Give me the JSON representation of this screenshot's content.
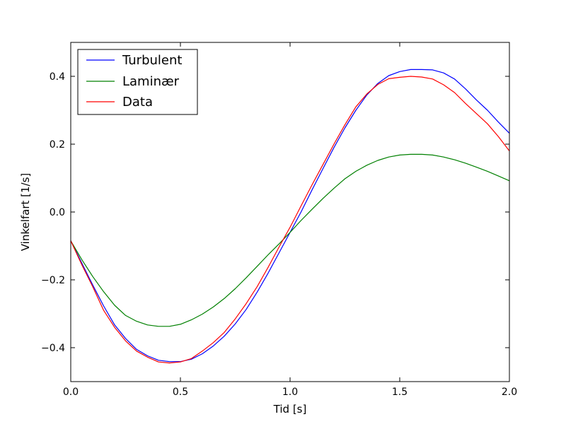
{
  "chart_data": {
    "type": "line",
    "title": "",
    "xlabel": "Tid [s]",
    "ylabel": "Vinkelfart [1/s]",
    "xlim": [
      0.0,
      2.0
    ],
    "ylim": [
      -0.5,
      0.5
    ],
    "x_ticks": [
      0.0,
      0.5,
      1.0,
      1.5,
      2.0
    ],
    "x_tick_labels": [
      "0.0",
      "0.5",
      "1.0",
      "1.5",
      "2.0"
    ],
    "y_ticks": [
      -0.4,
      -0.2,
      0.0,
      0.2,
      0.4
    ],
    "y_tick_labels": [
      "−0.4",
      "−0.2",
      "0.0",
      "0.2",
      "0.4"
    ],
    "grid": false,
    "legend_position": "top-left",
    "series": [
      {
        "name": "Turbulent",
        "color": "#0000ff",
        "x": [
          0.0,
          0.05,
          0.1,
          0.15,
          0.2,
          0.25,
          0.3,
          0.35,
          0.4,
          0.45,
          0.5,
          0.55,
          0.6,
          0.65,
          0.7,
          0.75,
          0.8,
          0.85,
          0.9,
          0.95,
          1.0,
          1.05,
          1.1,
          1.15,
          1.2,
          1.25,
          1.3,
          1.35,
          1.4,
          1.45,
          1.5,
          1.55,
          1.6,
          1.65,
          1.7,
          1.75,
          1.8,
          1.85,
          1.9,
          1.95,
          2.0
        ],
        "y": [
          -0.085,
          -0.15,
          -0.215,
          -0.277,
          -0.333,
          -0.373,
          -0.405,
          -0.424,
          -0.437,
          -0.441,
          -0.441,
          -0.434,
          -0.418,
          -0.395,
          -0.366,
          -0.33,
          -0.287,
          -0.236,
          -0.18,
          -0.12,
          -0.06,
          0.0,
          0.065,
          0.128,
          0.19,
          0.248,
          0.3,
          0.345,
          0.379,
          0.402,
          0.414,
          0.42,
          0.42,
          0.419,
          0.41,
          0.392,
          0.363,
          0.33,
          0.3,
          0.265,
          0.232
        ]
      },
      {
        "name": "Laminær",
        "color": "#008000",
        "x": [
          0.0,
          0.05,
          0.1,
          0.15,
          0.2,
          0.25,
          0.3,
          0.35,
          0.4,
          0.45,
          0.5,
          0.55,
          0.6,
          0.65,
          0.7,
          0.75,
          0.8,
          0.85,
          0.9,
          0.95,
          1.0,
          1.05,
          1.1,
          1.15,
          1.2,
          1.25,
          1.3,
          1.35,
          1.4,
          1.45,
          1.5,
          1.55,
          1.6,
          1.65,
          1.7,
          1.75,
          1.8,
          1.85,
          1.9,
          1.95,
          2.0
        ],
        "y": [
          -0.085,
          -0.14,
          -0.19,
          -0.235,
          -0.275,
          -0.305,
          -0.322,
          -0.333,
          -0.337,
          -0.337,
          -0.331,
          -0.318,
          -0.301,
          -0.28,
          -0.255,
          -0.226,
          -0.194,
          -0.16,
          -0.126,
          -0.094,
          -0.06,
          -0.025,
          0.008,
          0.04,
          0.07,
          0.098,
          0.12,
          0.138,
          0.152,
          0.162,
          0.168,
          0.17,
          0.17,
          0.168,
          0.162,
          0.154,
          0.144,
          0.132,
          0.12,
          0.106,
          0.092
        ]
      },
      {
        "name": "Data",
        "color": "#ff0000",
        "x": [
          0.0,
          0.05,
          0.1,
          0.15,
          0.2,
          0.25,
          0.3,
          0.35,
          0.4,
          0.45,
          0.5,
          0.55,
          0.6,
          0.65,
          0.7,
          0.75,
          0.8,
          0.85,
          0.9,
          0.95,
          1.0,
          1.05,
          1.1,
          1.15,
          1.2,
          1.25,
          1.3,
          1.35,
          1.4,
          1.45,
          1.5,
          1.55,
          1.6,
          1.65,
          1.7,
          1.75,
          1.8,
          1.85,
          1.9,
          1.95,
          2.0
        ],
        "y": [
          -0.085,
          -0.155,
          -0.22,
          -0.29,
          -0.34,
          -0.38,
          -0.41,
          -0.428,
          -0.442,
          -0.445,
          -0.442,
          -0.432,
          -0.41,
          -0.385,
          -0.355,
          -0.315,
          -0.27,
          -0.22,
          -0.163,
          -0.103,
          -0.045,
          0.018,
          0.08,
          0.14,
          0.2,
          0.257,
          0.31,
          0.348,
          0.376,
          0.393,
          0.397,
          0.4,
          0.398,
          0.392,
          0.375,
          0.352,
          0.32,
          0.29,
          0.26,
          0.222,
          0.18
        ]
      }
    ]
  }
}
